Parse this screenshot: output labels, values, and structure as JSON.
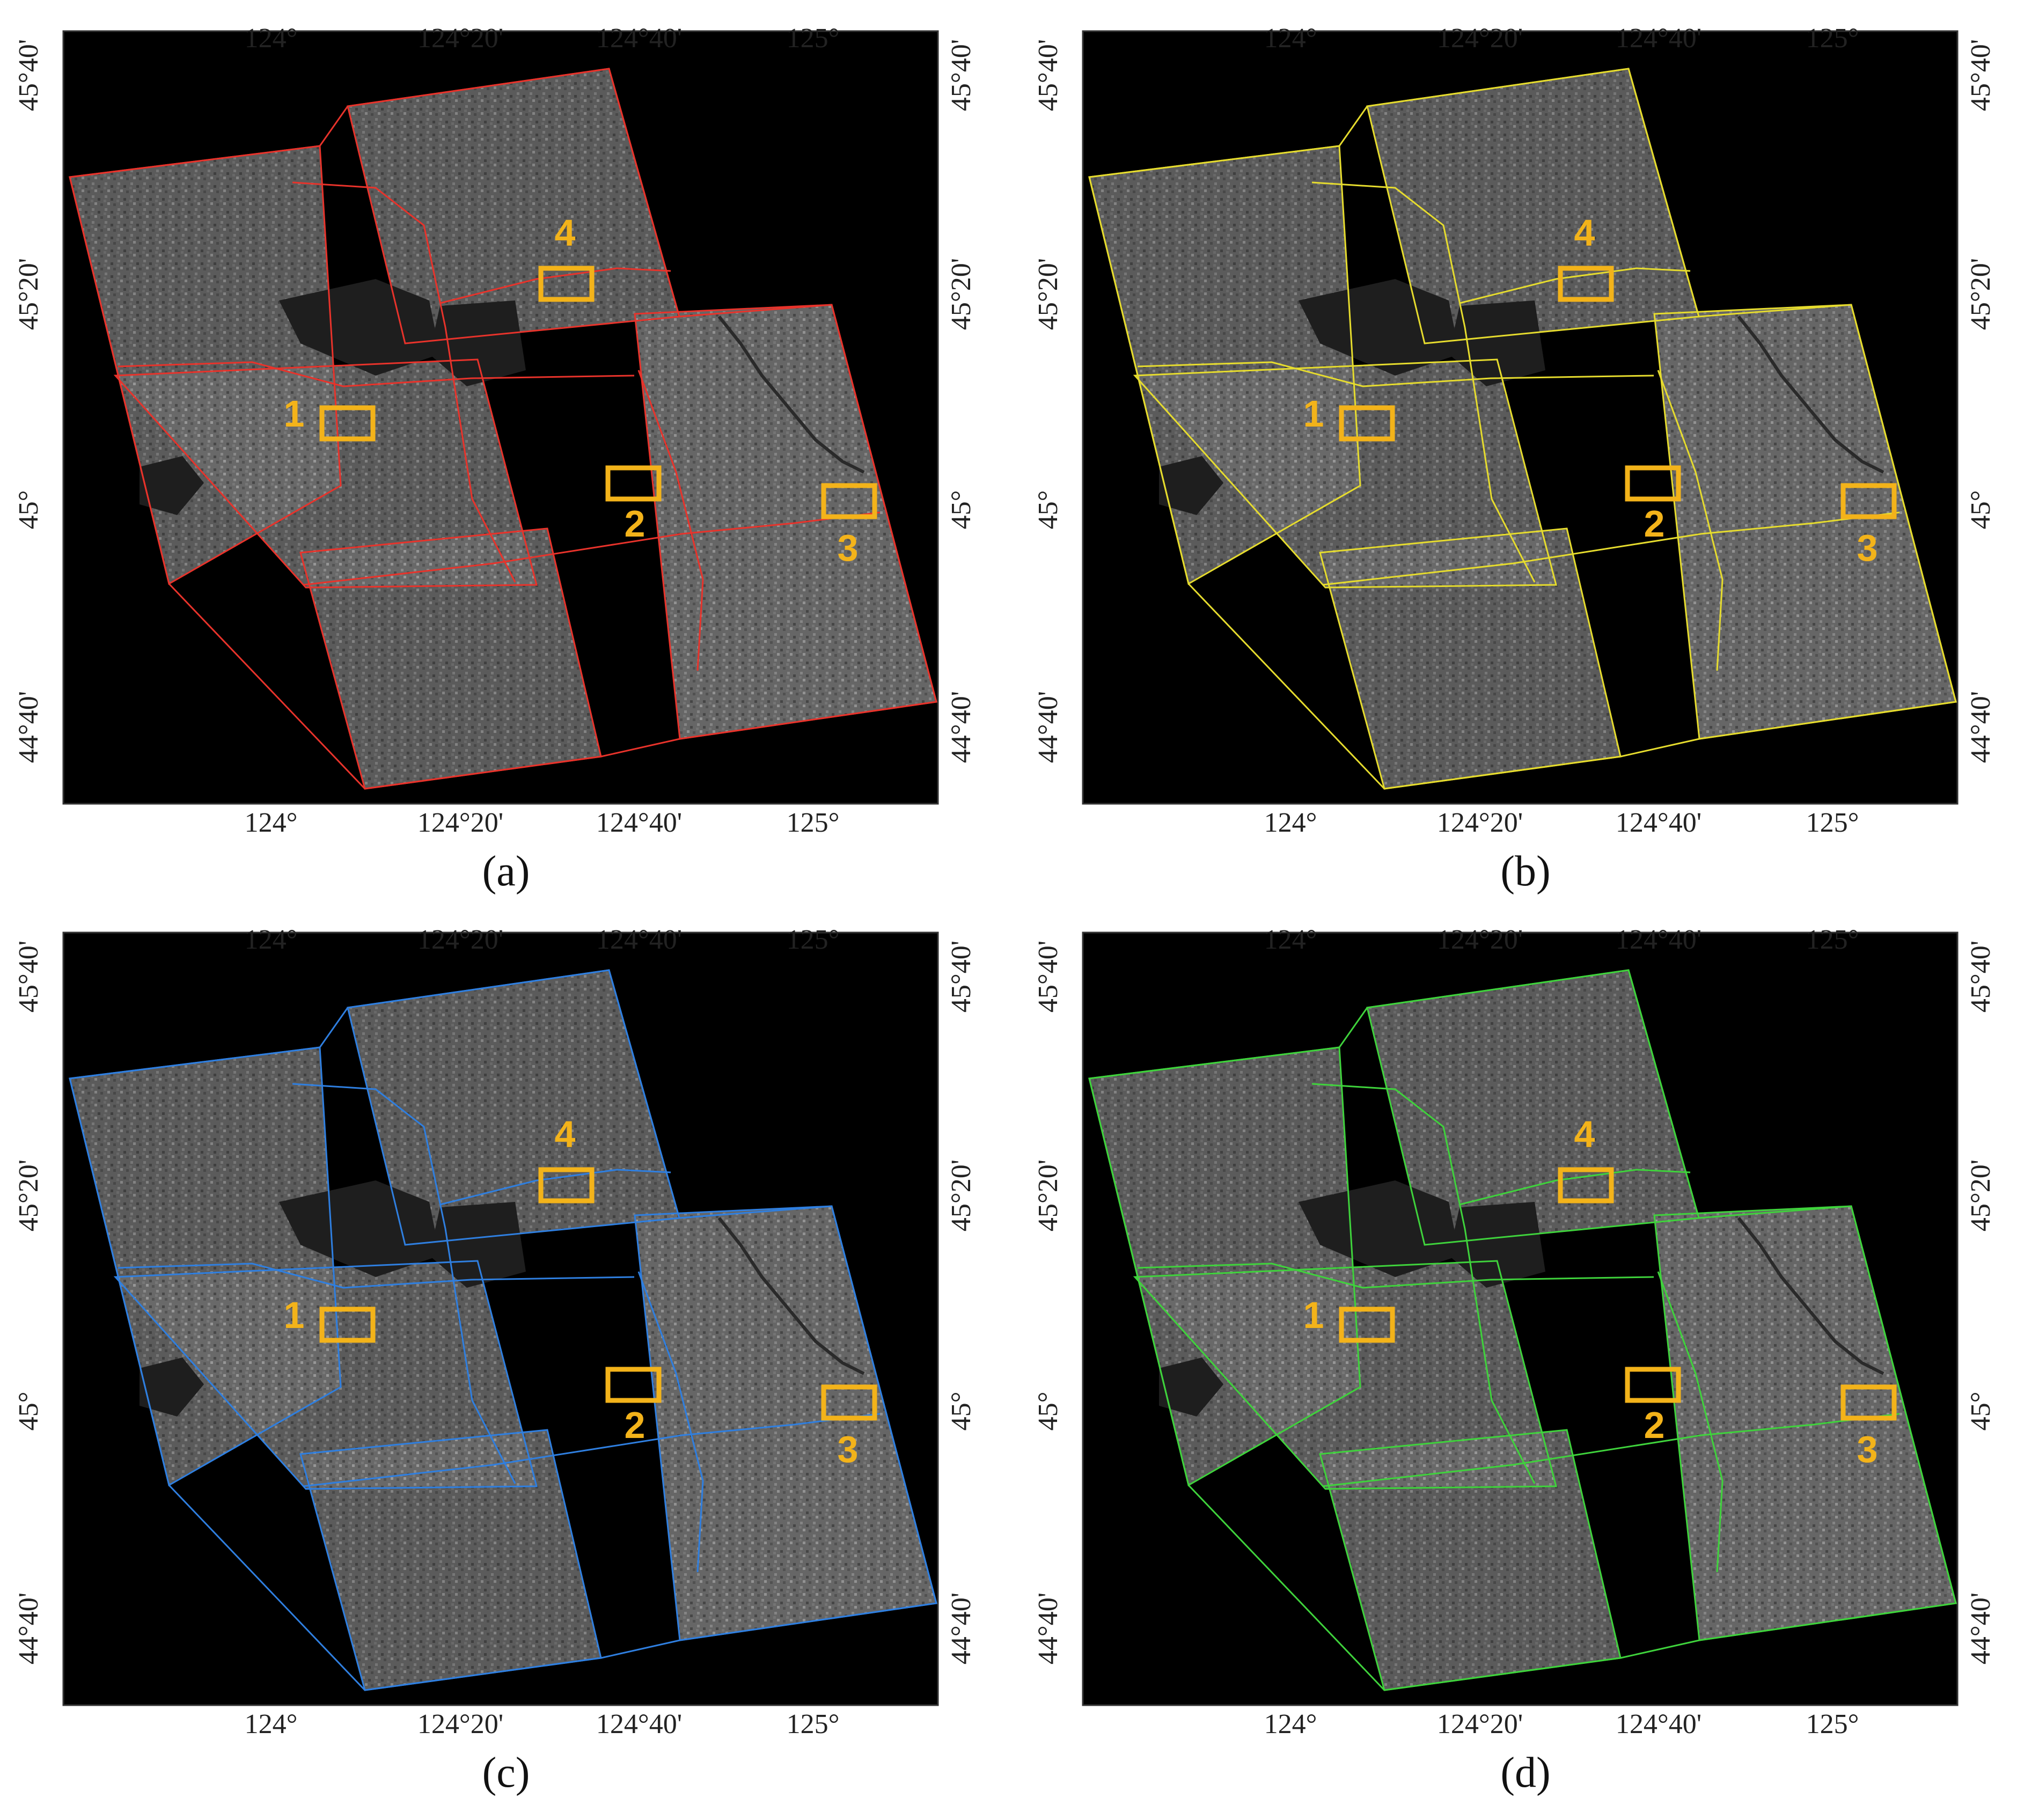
{
  "figure": {
    "panels": [
      {
        "id": "a",
        "caption": "(a)",
        "boundary_color": "#e8332b"
      },
      {
        "id": "b",
        "caption": "(b)",
        "boundary_color": "#e6dc2e"
      },
      {
        "id": "c",
        "caption": "(c)",
        "boundary_color": "#2f7fe0"
      },
      {
        "id": "d",
        "caption": "(d)",
        "boundary_color": "#3fd33c"
      }
    ],
    "longitude_labels": [
      "124°",
      "124°20'",
      "124°40'",
      "125°"
    ],
    "latitude_labels": [
      "45°40'",
      "45°20'",
      "45°",
      "44°40'"
    ],
    "box_labels": [
      "1",
      "2",
      "3",
      "4"
    ],
    "box_color": "#f3b31a",
    "image_background": "#000000"
  }
}
